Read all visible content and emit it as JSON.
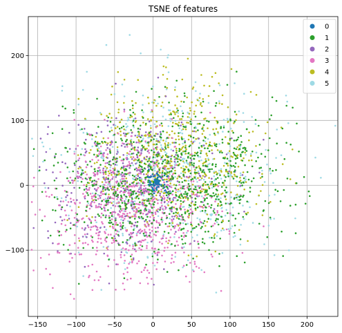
{
  "chart_data": {
    "type": "scatter",
    "title": "TSNE of features",
    "xlabel": "",
    "ylabel": "",
    "xlim": [
      -162,
      240
    ],
    "ylim": [
      -202,
      260
    ],
    "xticks": [
      -150,
      -100,
      -50,
      0,
      50,
      100,
      150,
      200
    ],
    "yticks": [
      -100,
      0,
      100,
      200
    ],
    "xtick_labels": [
      "−150",
      "−100",
      "−50",
      "0",
      "50",
      "100",
      "150",
      "200"
    ],
    "ytick_labels": [
      "−100",
      "0",
      "100",
      "200"
    ],
    "grid": true,
    "legend_position": "top-right",
    "series": [
      {
        "name": "0",
        "color": "#1f77b4",
        "center": [
          5,
          5
        ],
        "spread": [
          8,
          8
        ],
        "count": 60,
        "highlight_point": [
          5,
          5
        ]
      },
      {
        "name": "1",
        "color": "#2ca02c",
        "center": [
          20,
          10
        ],
        "spread": [
          70,
          55
        ],
        "count": 900
      },
      {
        "name": "2",
        "color": "#9467bd",
        "center": [
          -30,
          0
        ],
        "spread": [
          55,
          50
        ],
        "count": 450
      },
      {
        "name": "3",
        "color": "#e377c2",
        "center": [
          -30,
          -40
        ],
        "spread": [
          55,
          55
        ],
        "count": 750
      },
      {
        "name": "4",
        "color": "#bcbd22",
        "center": [
          25,
          40
        ],
        "spread": [
          55,
          55
        ],
        "count": 650
      },
      {
        "name": "5",
        "color": "#9edae5",
        "center": [
          20,
          20
        ],
        "spread": [
          75,
          70
        ],
        "count": 600
      }
    ]
  }
}
